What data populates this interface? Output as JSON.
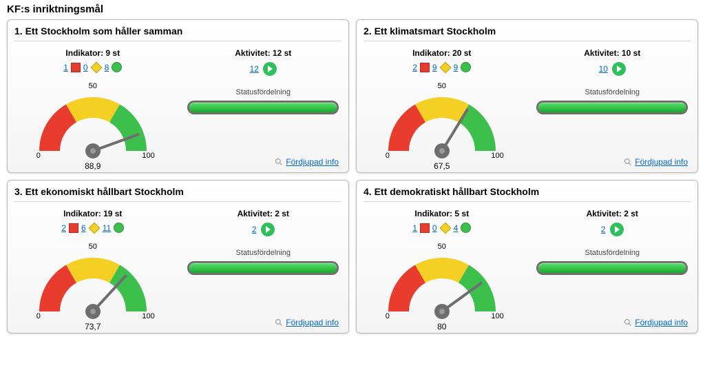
{
  "page_title": "KF:s inriktningsmål",
  "deep_link_label": "Fördjupad info",
  "status_label": "Statusfördelning",
  "colors": {
    "red": "#e83c2e",
    "yellow": "#f5d024",
    "green": "#3cbf4b",
    "link": "#0066cc",
    "needle": "#6e6e6e",
    "card_border": "#b8b8b8",
    "bar_bg": "#808080",
    "bar_fill": "#2fbf4b"
  },
  "gauge": {
    "min": 0,
    "mid": 50,
    "max": 100,
    "min_label": "0",
    "mid_label": "50",
    "max_label": "100"
  },
  "cards": [
    {
      "title": "1. Ett Stockholm som håller samman",
      "indikator_label": "Indikator: 9 st",
      "ind_counts": {
        "red": "1",
        "yellow": "0",
        "green": "8"
      },
      "aktivitet_label": "Aktivitet: 12 st",
      "aktivitet_count": "12",
      "gauge_value": 88.9,
      "gauge_value_label": "88,9"
    },
    {
      "title": "2. Ett klimatsmart Stockholm",
      "indikator_label": "Indikator: 20 st",
      "ind_counts": {
        "red": "2",
        "yellow": "9",
        "green": "9"
      },
      "aktivitet_label": "Aktivitet: 10 st",
      "aktivitet_count": "10",
      "gauge_value": 67.5,
      "gauge_value_label": "67,5"
    },
    {
      "title": "3. Ett ekonomiskt hållbart Stockholm",
      "indikator_label": "Indikator: 19 st",
      "ind_counts": {
        "red": "2",
        "yellow": "6",
        "green": "11"
      },
      "aktivitet_label": "Aktivitet: 2 st",
      "aktivitet_count": "2",
      "gauge_value": 73.7,
      "gauge_value_label": "73,7"
    },
    {
      "title": "4. Ett demokratiskt hållbart Stockholm",
      "indikator_label": "Indikator: 5 st",
      "ind_counts": {
        "red": "1",
        "yellow": "0",
        "green": "4"
      },
      "aktivitet_label": "Aktivitet: 2 st",
      "aktivitet_count": "2",
      "gauge_value": 80,
      "gauge_value_label": "80"
    }
  ]
}
